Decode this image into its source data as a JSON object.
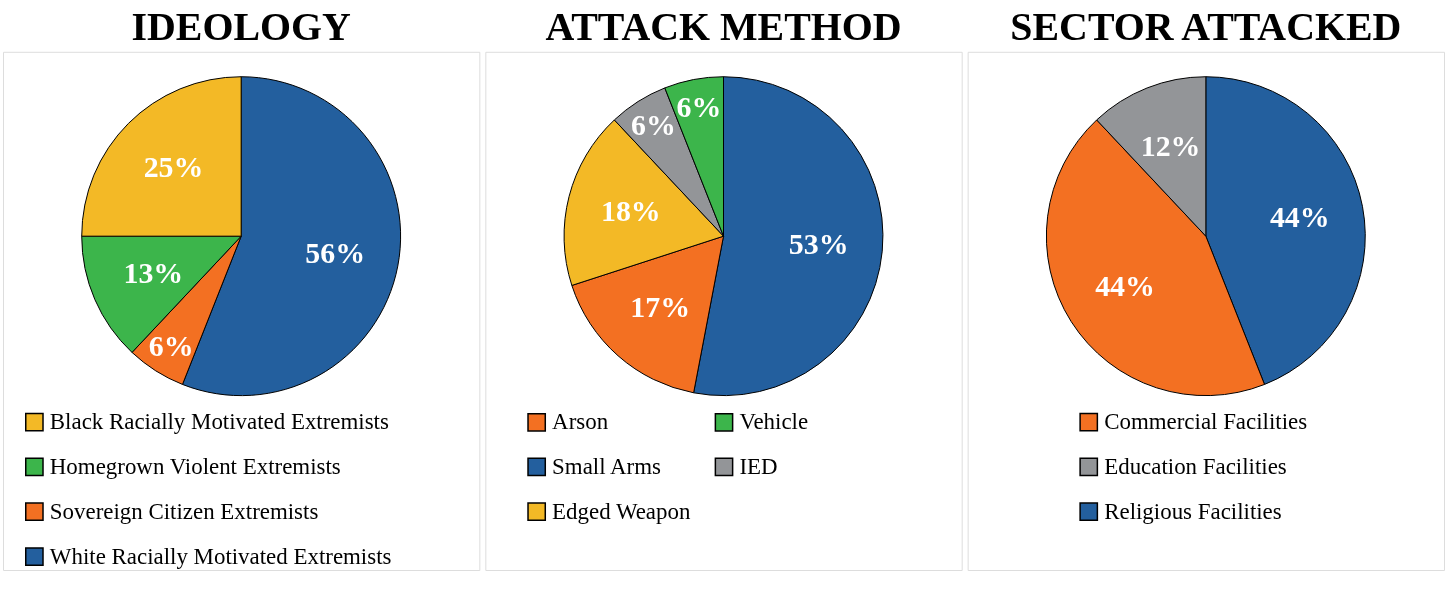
{
  "chart_data": [
    {
      "type": "pie",
      "title": "IDEOLOGY",
      "categories": [
        "White Racially Motivated Extremists",
        "Sovereign Citizen Extremists",
        "Homegrown Violent Extremists",
        "Black Racially Motivated Extremists"
      ],
      "values": [
        56,
        6,
        13,
        25
      ],
      "value_labels": [
        "56%",
        "6%",
        "13%",
        "25%"
      ],
      "colors": [
        "#235f9e",
        "#f37022",
        "#3cb54b",
        "#f3b926"
      ],
      "legend": "bottom"
    },
    {
      "type": "pie",
      "title": "ATTACK METHOD",
      "categories": [
        "Small Arms",
        "Arson",
        "Edged Weapon",
        "IED",
        "Vehicle"
      ],
      "values": [
        53,
        17,
        18,
        6,
        6
      ],
      "value_labels": [
        "53%",
        "17%",
        "18%",
        "6%",
        "6%"
      ],
      "colors": [
        "#235f9e",
        "#f37022",
        "#f3b926",
        "#939598",
        "#3cb54b"
      ],
      "legend": "bottom"
    },
    {
      "type": "pie",
      "title": "SECTOR ATTACKED",
      "categories": [
        "Religious Facilities",
        "Commercial Facilities",
        "Education Facilities"
      ],
      "values": [
        44,
        44,
        12
      ],
      "value_labels": [
        "44%",
        "44%",
        "12%"
      ],
      "colors": [
        "#235f9e",
        "#f37022",
        "#939598"
      ],
      "legend": "bottom"
    }
  ]
}
